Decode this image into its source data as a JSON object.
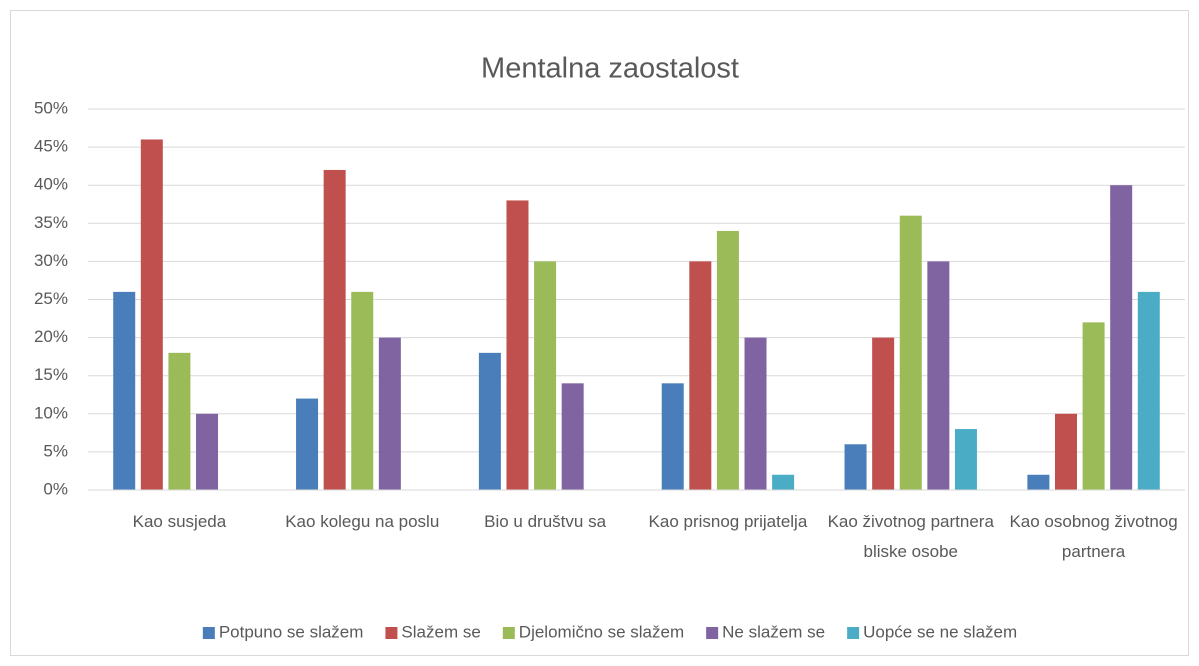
{
  "chart_data": {
    "type": "bar",
    "title": "Mentalna zaostalost",
    "categories": [
      "Kao susjeda",
      "Kao kolegu na poslu",
      "Bio u društvu sa",
      "Kao prisnog prijatelja",
      "Kao životnog partnera bliske osobe",
      "Kao osobnog životnog partnera"
    ],
    "series": [
      {
        "name": "Potpuno se slažem",
        "color": "#4a7ebb",
        "values": [
          26,
          12,
          18,
          14,
          6,
          2
        ]
      },
      {
        "name": "Slažem se",
        "color": "#c0504d",
        "values": [
          46,
          42,
          38,
          30,
          20,
          10
        ]
      },
      {
        "name": "Djelomično se slažem",
        "color": "#9bbb59",
        "values": [
          18,
          26,
          30,
          34,
          36,
          22
        ]
      },
      {
        "name": "Ne slažem se",
        "color": "#8064a2",
        "values": [
          10,
          20,
          14,
          20,
          30,
          40
        ]
      },
      {
        "name": "Uopće se ne slažem",
        "color": "#4bacc6",
        "values": [
          0,
          0,
          0,
          2,
          8,
          26
        ]
      }
    ],
    "ylim": [
      0,
      50
    ],
    "yticks": [
      {
        "value": 0,
        "label": "0%"
      },
      {
        "value": 5,
        "label": "5%"
      },
      {
        "value": 10,
        "label": "10%"
      },
      {
        "value": 15,
        "label": "15%"
      },
      {
        "value": 20,
        "label": "20%"
      },
      {
        "value": 25,
        "label": "25%"
      },
      {
        "value": 30,
        "label": "30%"
      },
      {
        "value": 35,
        "label": "35%"
      },
      {
        "value": 40,
        "label": "40%"
      },
      {
        "value": 45,
        "label": "45%"
      },
      {
        "value": 50,
        "label": "50%"
      }
    ],
    "grid": true,
    "legend": "bottom"
  }
}
